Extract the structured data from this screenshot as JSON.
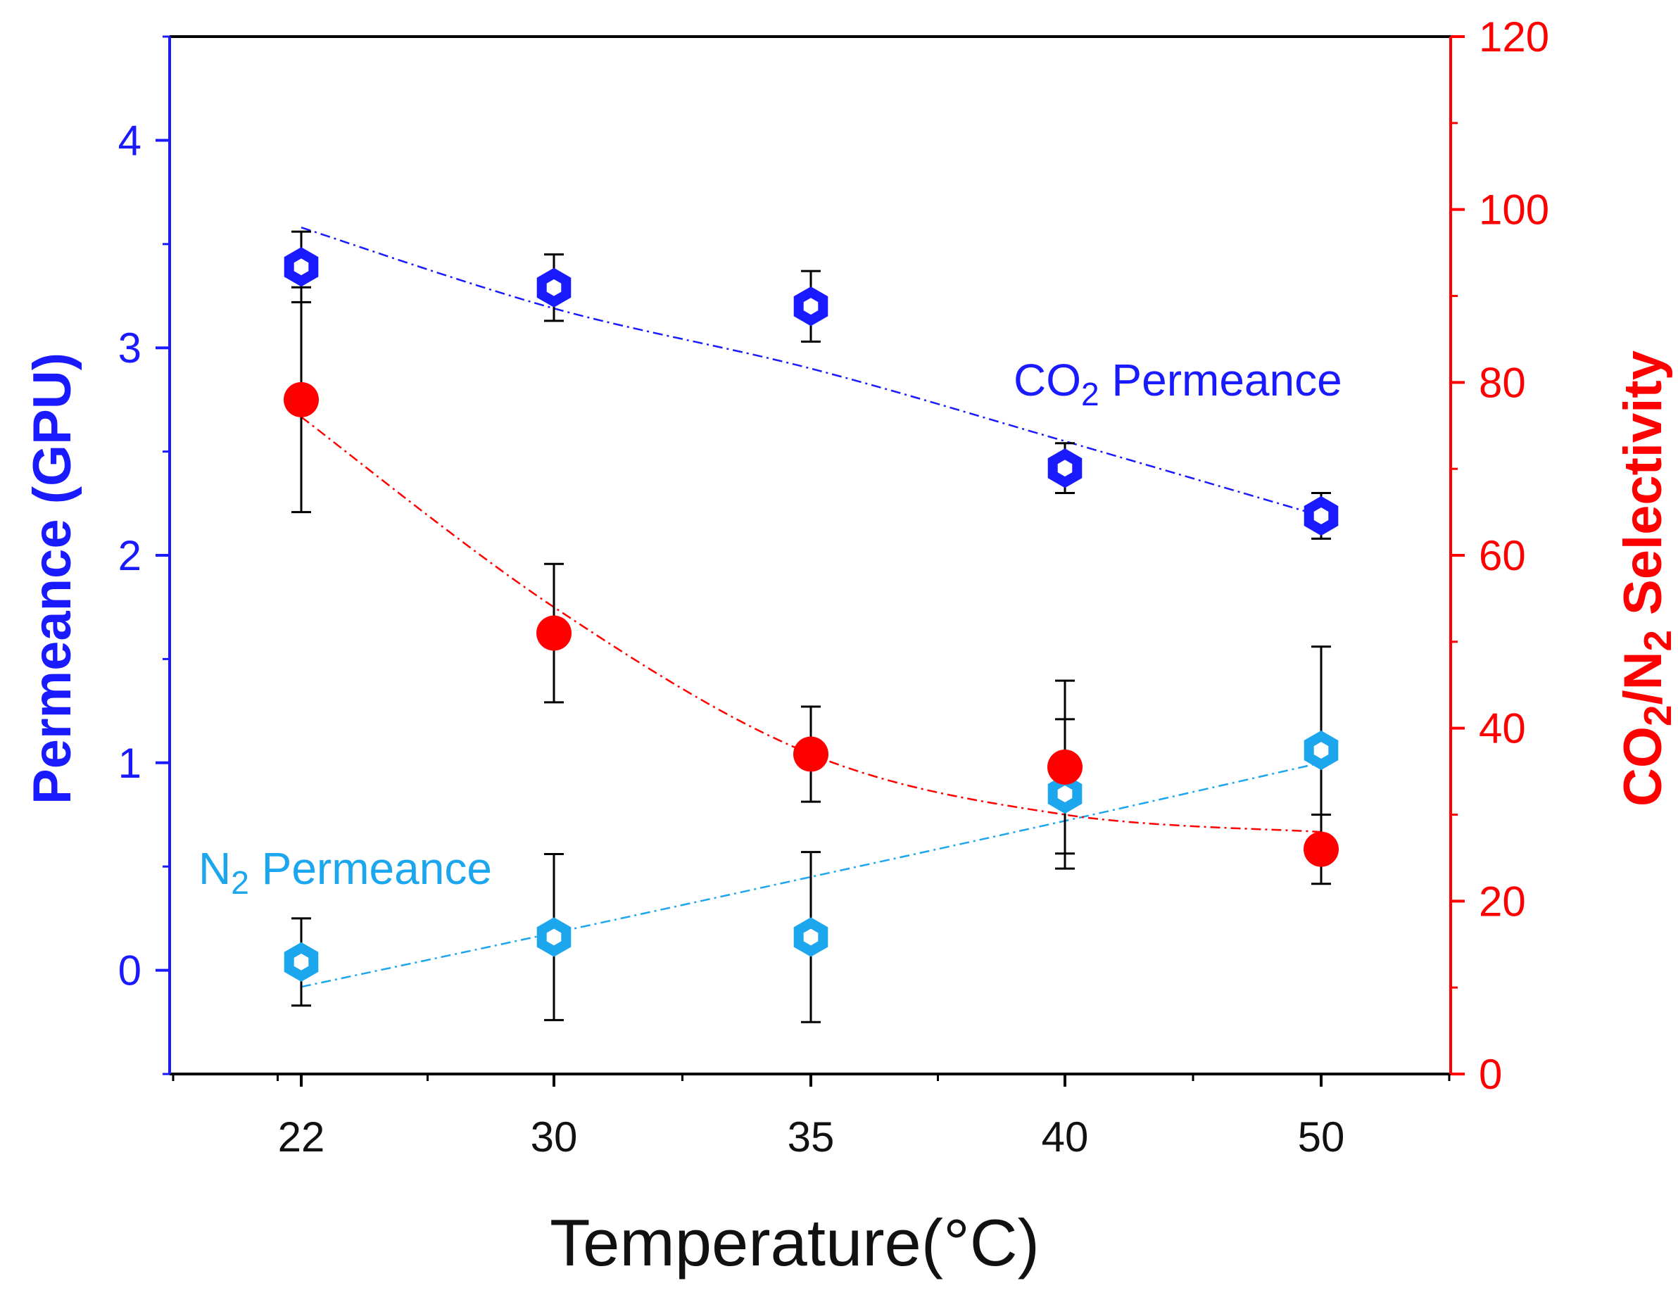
{
  "chart_data": {
    "type": "scatter",
    "xlabel": "Temperature(°C)",
    "x_categories": [
      "22",
      "30",
      "35",
      "40",
      "50"
    ],
    "y_left": {
      "label_main": "Permeance (GPU)",
      "range": [
        -0.5,
        4.5
      ],
      "ticks": [
        "0",
        "1",
        "2",
        "3",
        "4"
      ],
      "color": "#1a1aff"
    },
    "y_right": {
      "label_pre": "CO",
      "label_sub1": "2",
      "label_mid": "/N",
      "label_sub2": "2",
      "label_post": " Selectivity",
      "range": [
        0,
        120
      ],
      "ticks": [
        "0",
        "20",
        "40",
        "60",
        "80",
        "100",
        "120"
      ],
      "color": "#ff0000"
    },
    "series": [
      {
        "name": "CO2 Permeance",
        "label_pre": "CO",
        "label_sub": "2",
        "label_post": " Permeance",
        "axis": "left",
        "color": "#1a1aff",
        "marker": "hollow-hexagon",
        "values": [
          3.39,
          3.29,
          3.2,
          2.42,
          2.19
        ],
        "errors": [
          0.17,
          0.16,
          0.17,
          0.12,
          0.11
        ],
        "fit": [
          3.58,
          3.19,
          2.9,
          2.55,
          2.19
        ]
      },
      {
        "name": "N2 Permeance",
        "label_pre": "N",
        "label_sub": "2",
        "label_post": " Permeance",
        "axis": "left",
        "color": "#1ca6ee",
        "marker": "hollow-hexagon",
        "values": [
          0.04,
          0.16,
          0.16,
          0.85,
          1.06
        ],
        "errors": [
          0.21,
          0.4,
          0.41,
          0.36,
          0.5
        ],
        "fit": [
          -0.08,
          0.18,
          0.45,
          0.72,
          1.0
        ]
      },
      {
        "name": "CO2/N2 Selectivity",
        "axis": "right",
        "color": "#ff0000",
        "marker": "filled-circle",
        "values": [
          78,
          51,
          37,
          35.5,
          26
        ],
        "errors": [
          13,
          8,
          5.5,
          10,
          4
        ],
        "fit": [
          76,
          54,
          37,
          30,
          28
        ]
      }
    ],
    "errorbar_color": "#000000"
  }
}
